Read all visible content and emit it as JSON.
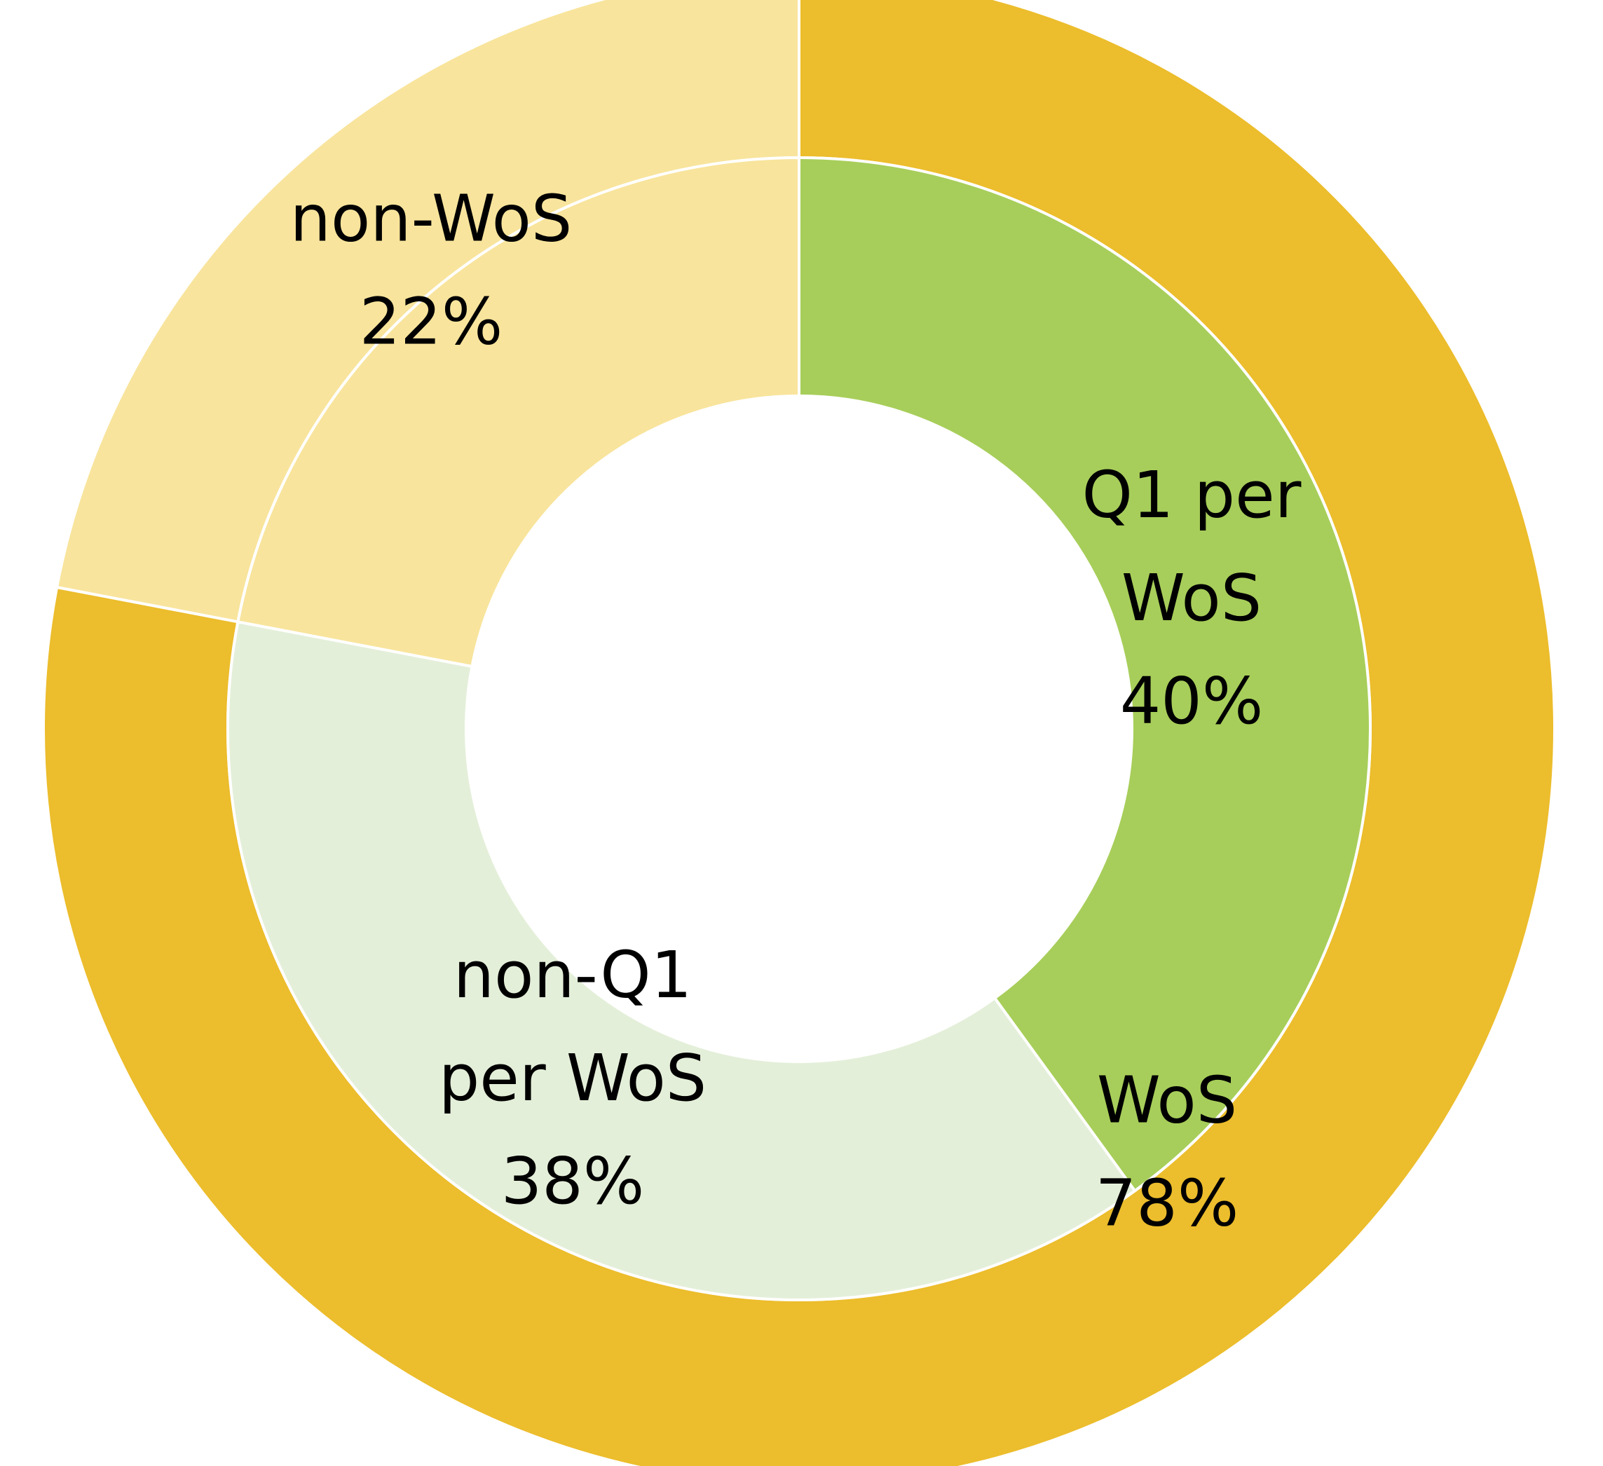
{
  "chart_data": {
    "type": "donut",
    "rings": [
      {
        "name": "",
        "slices": [
          {
            "label": "WoS",
            "value": 78,
            "display": "78%",
            "color": "#ECBD2C"
          },
          {
            "label": "non-WoS",
            "value": 22,
            "display": "22%",
            "color": "#F8E49C"
          }
        ]
      },
      {
        "name": "",
        "slices": [
          {
            "label": "Q1 per WoS",
            "value": 40,
            "display": "40%",
            "color": "#A7CE5A"
          },
          {
            "label": "non-Q1 per WoS",
            "value": 38,
            "display": "38%",
            "color": "#E4EFD9"
          },
          {
            "label": "non-WoS",
            "value": 22,
            "display": "22%",
            "color": "#F8E49C"
          }
        ]
      }
    ],
    "start_angle_deg": 0,
    "direction": "clockwise",
    "legend": "none",
    "data_labels": [
      {
        "ring": 0,
        "slice": 0,
        "lines": [
          "WoS",
          "78%"
        ]
      },
      {
        "ring": 0,
        "slice": 1,
        "lines": [
          "non-WoS",
          "22%"
        ]
      },
      {
        "ring": 1,
        "slice": 0,
        "lines": [
          "Q1 per",
          "WoS",
          "40%"
        ]
      },
      {
        "ring": 1,
        "slice": 1,
        "lines": [
          "non-Q1",
          "per WoS",
          "38%"
        ]
      }
    ]
  }
}
